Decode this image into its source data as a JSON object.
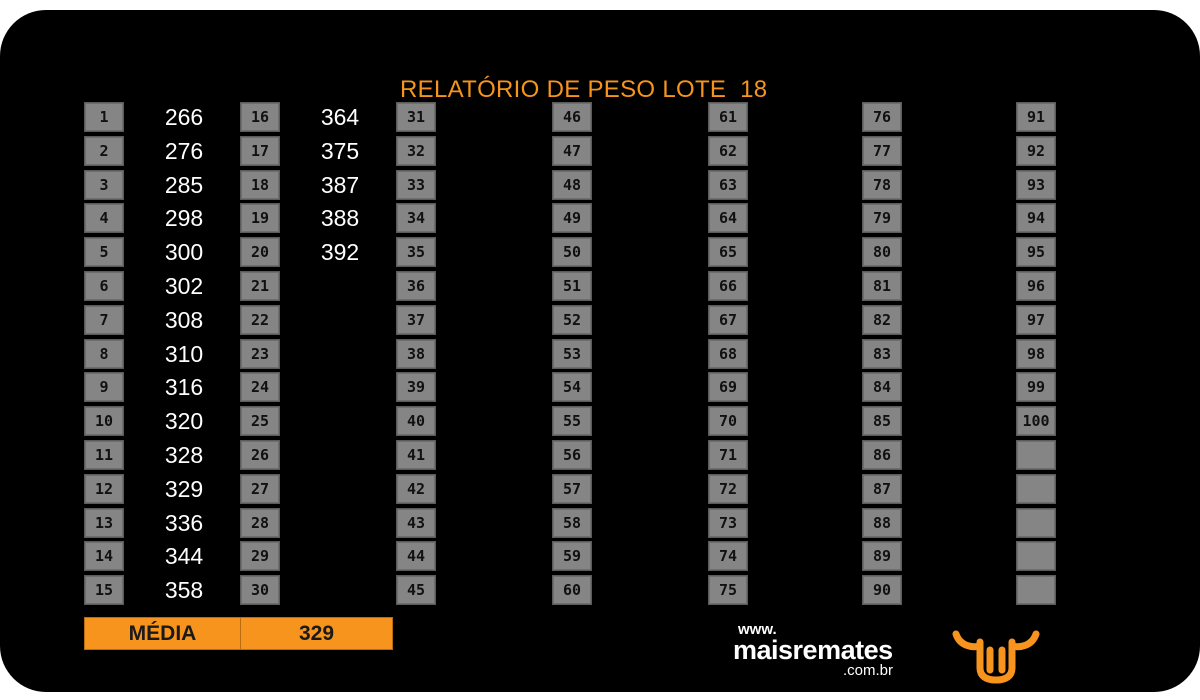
{
  "report": {
    "title": "RELATÓRIO DE PESO LOTE  18",
    "lots": [
      {
        "n": "1",
        "w": "266"
      },
      {
        "n": "2",
        "w": "276"
      },
      {
        "n": "3",
        "w": "285"
      },
      {
        "n": "4",
        "w": "298"
      },
      {
        "n": "5",
        "w": "300"
      },
      {
        "n": "6",
        "w": "302"
      },
      {
        "n": "7",
        "w": "308"
      },
      {
        "n": "8",
        "w": "310"
      },
      {
        "n": "9",
        "w": "316"
      },
      {
        "n": "10",
        "w": "320"
      },
      {
        "n": "11",
        "w": "328"
      },
      {
        "n": "12",
        "w": "329"
      },
      {
        "n": "13",
        "w": "336"
      },
      {
        "n": "14",
        "w": "344"
      },
      {
        "n": "15",
        "w": "358"
      },
      {
        "n": "16",
        "w": "364"
      },
      {
        "n": "17",
        "w": "375"
      },
      {
        "n": "18",
        "w": "387"
      },
      {
        "n": "19",
        "w": "388"
      },
      {
        "n": "20",
        "w": "392"
      },
      {
        "n": "21",
        "w": ""
      },
      {
        "n": "22",
        "w": ""
      },
      {
        "n": "23",
        "w": ""
      },
      {
        "n": "24",
        "w": ""
      },
      {
        "n": "25",
        "w": ""
      },
      {
        "n": "26",
        "w": ""
      },
      {
        "n": "27",
        "w": ""
      },
      {
        "n": "28",
        "w": ""
      },
      {
        "n": "29",
        "w": ""
      },
      {
        "n": "30",
        "w": ""
      },
      {
        "n": "31",
        "w": ""
      },
      {
        "n": "32",
        "w": ""
      },
      {
        "n": "33",
        "w": ""
      },
      {
        "n": "34",
        "w": ""
      },
      {
        "n": "35",
        "w": ""
      },
      {
        "n": "36",
        "w": ""
      },
      {
        "n": "37",
        "w": ""
      },
      {
        "n": "38",
        "w": ""
      },
      {
        "n": "39",
        "w": ""
      },
      {
        "n": "40",
        "w": ""
      },
      {
        "n": "41",
        "w": ""
      },
      {
        "n": "42",
        "w": ""
      },
      {
        "n": "43",
        "w": ""
      },
      {
        "n": "44",
        "w": ""
      },
      {
        "n": "45",
        "w": ""
      },
      {
        "n": "46",
        "w": ""
      },
      {
        "n": "47",
        "w": ""
      },
      {
        "n": "48",
        "w": ""
      },
      {
        "n": "49",
        "w": ""
      },
      {
        "n": "50",
        "w": ""
      },
      {
        "n": "51",
        "w": ""
      },
      {
        "n": "52",
        "w": ""
      },
      {
        "n": "53",
        "w": ""
      },
      {
        "n": "54",
        "w": ""
      },
      {
        "n": "55",
        "w": ""
      },
      {
        "n": "56",
        "w": ""
      },
      {
        "n": "57",
        "w": ""
      },
      {
        "n": "58",
        "w": ""
      },
      {
        "n": "59",
        "w": ""
      },
      {
        "n": "60",
        "w": ""
      },
      {
        "n": "61",
        "w": ""
      },
      {
        "n": "62",
        "w": ""
      },
      {
        "n": "63",
        "w": ""
      },
      {
        "n": "64",
        "w": ""
      },
      {
        "n": "65",
        "w": ""
      },
      {
        "n": "66",
        "w": ""
      },
      {
        "n": "67",
        "w": ""
      },
      {
        "n": "68",
        "w": ""
      },
      {
        "n": "69",
        "w": ""
      },
      {
        "n": "70",
        "w": ""
      },
      {
        "n": "71",
        "w": ""
      },
      {
        "n": "72",
        "w": ""
      },
      {
        "n": "73",
        "w": ""
      },
      {
        "n": "74",
        "w": ""
      },
      {
        "n": "75",
        "w": ""
      },
      {
        "n": "76",
        "w": ""
      },
      {
        "n": "77",
        "w": ""
      },
      {
        "n": "78",
        "w": ""
      },
      {
        "n": "79",
        "w": ""
      },
      {
        "n": "80",
        "w": ""
      },
      {
        "n": "81",
        "w": ""
      },
      {
        "n": "82",
        "w": ""
      },
      {
        "n": "83",
        "w": ""
      },
      {
        "n": "84",
        "w": ""
      },
      {
        "n": "85",
        "w": ""
      },
      {
        "n": "86",
        "w": ""
      },
      {
        "n": "87",
        "w": ""
      },
      {
        "n": "88",
        "w": ""
      },
      {
        "n": "89",
        "w": ""
      },
      {
        "n": "90",
        "w": ""
      },
      {
        "n": "91",
        "w": ""
      },
      {
        "n": "92",
        "w": ""
      },
      {
        "n": "93",
        "w": ""
      },
      {
        "n": "94",
        "w": ""
      },
      {
        "n": "95",
        "w": ""
      },
      {
        "n": "96",
        "w": ""
      },
      {
        "n": "97",
        "w": ""
      },
      {
        "n": "98",
        "w": ""
      },
      {
        "n": "99",
        "w": ""
      },
      {
        "n": "100",
        "w": ""
      },
      {
        "n": "",
        "w": ""
      },
      {
        "n": "",
        "w": ""
      },
      {
        "n": "",
        "w": ""
      },
      {
        "n": "",
        "w": ""
      },
      {
        "n": "",
        "w": ""
      }
    ],
    "average": {
      "label": "MÉDIA",
      "value": "329"
    }
  },
  "branding": {
    "www": "www.",
    "name": "maisremates",
    "tld": ".com.br",
    "logo_icon": "bull-head-icon"
  },
  "colors": {
    "background": "#000000",
    "accent": "#f7941d",
    "cell": "#858585",
    "text": "#ffffff"
  }
}
